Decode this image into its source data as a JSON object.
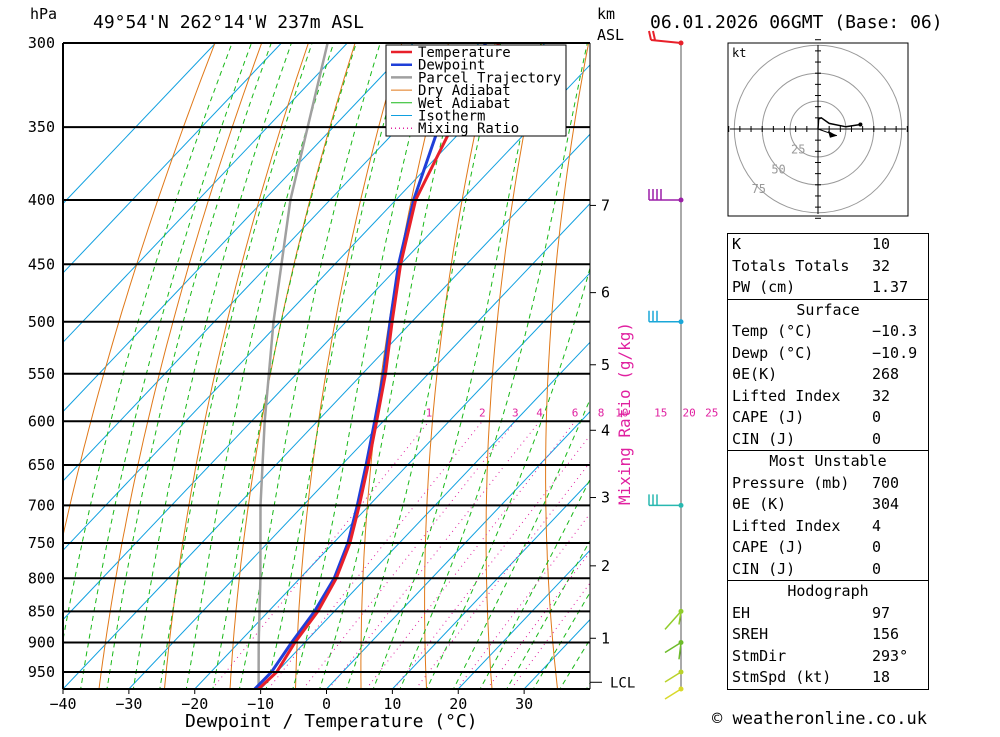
{
  "header": {
    "location": "49°54'N 262°14'W 237m ASL",
    "datetime": "06.01.2026 06GMT (Base: 06)",
    "hpa_label": "hPa",
    "km_label": "km",
    "asl_label": "ASL"
  },
  "chart_data": {
    "type": "skew-t",
    "title": "49°54'N 262°14'W 237m ASL",
    "xlabel": "Dewpoint / Temperature (°C)",
    "ylabel": "hPa",
    "right_ylabel": "Mixing Ratio (g/kg)",
    "xlim": [
      -40,
      40
    ],
    "pressure_range": [
      300,
      980
    ],
    "x_ticks": [
      -40,
      -30,
      -20,
      -10,
      0,
      10,
      20,
      30
    ],
    "pressure_levels": [
      300,
      350,
      400,
      450,
      500,
      550,
      600,
      650,
      700,
      750,
      800,
      850,
      900,
      950
    ],
    "km_ticks": [
      {
        "label": "7",
        "p": 404
      },
      {
        "label": "6",
        "p": 474
      },
      {
        "label": "5",
        "p": 541
      },
      {
        "label": "4",
        "p": 610
      },
      {
        "label": "3",
        "p": 690
      },
      {
        "label": "2",
        "p": 782
      },
      {
        "label": "1",
        "p": 893
      }
    ],
    "lcl": {
      "label": "LCL",
      "p": 968
    },
    "mixing_ratio_labels": [
      "1",
      "2",
      "3",
      "4",
      "6",
      "8",
      "10",
      "15",
      "20",
      "25"
    ],
    "mixing_ratio_values": [
      1,
      2,
      3,
      4,
      6,
      8,
      10,
      15,
      20,
      25
    ],
    "legend": [
      "Temperature",
      "Dewpoint",
      "Parcel Trajectory",
      "Dry Adiabat",
      "Wet Adiabat",
      "Isotherm",
      "Mixing Ratio"
    ],
    "series": [
      {
        "name": "Temperature",
        "points": [
          {
            "p": 980,
            "t": -10.3
          },
          {
            "p": 950,
            "t": -10.0
          },
          {
            "p": 900,
            "t": -11.5
          },
          {
            "p": 850,
            "t": -12.5
          },
          {
            "p": 800,
            "t": -14.5
          },
          {
            "p": 750,
            "t": -17.5
          },
          {
            "p": 700,
            "t": -21.5
          },
          {
            "p": 650,
            "t": -26.0
          },
          {
            "p": 600,
            "t": -31.0
          },
          {
            "p": 550,
            "t": -36.5
          },
          {
            "p": 500,
            "t": -43.0
          },
          {
            "p": 450,
            "t": -50.0
          },
          {
            "p": 400,
            "t": -57.0
          },
          {
            "p": 350,
            "t": -62.0
          },
          {
            "p": 300,
            "t": -67.0
          }
        ]
      },
      {
        "name": "Dewpoint",
        "points": [
          {
            "p": 980,
            "t": -10.9
          },
          {
            "p": 950,
            "t": -10.8
          },
          {
            "p": 900,
            "t": -12.0
          },
          {
            "p": 850,
            "t": -13.0
          },
          {
            "p": 800,
            "t": -14.8
          },
          {
            "p": 750,
            "t": -17.8
          },
          {
            "p": 700,
            "t": -21.8
          },
          {
            "p": 650,
            "t": -26.3
          },
          {
            "p": 600,
            "t": -31.3
          },
          {
            "p": 550,
            "t": -36.8
          },
          {
            "p": 500,
            "t": -43.3
          },
          {
            "p": 450,
            "t": -50.3
          },
          {
            "p": 400,
            "t": -57.3
          },
          {
            "p": 350,
            "t": -64.0
          },
          {
            "p": 300,
            "t": -69.0
          }
        ]
      },
      {
        "name": "Parcel Trajectory",
        "points": [
          {
            "p": 980,
            "t": -10.3
          },
          {
            "p": 900,
            "t": -17.0
          },
          {
            "p": 800,
            "t": -26.0
          },
          {
            "p": 700,
            "t": -36.5
          },
          {
            "p": 600,
            "t": -48.0
          },
          {
            "p": 500,
            "t": -61.0
          },
          {
            "p": 400,
            "t": -76.0
          },
          {
            "p": 300,
            "t": -93.0
          }
        ]
      }
    ],
    "wind_barbs": [
      {
        "p": 300,
        "color": "#e8202a"
      },
      {
        "p": 400,
        "color": "#9b1fa8"
      },
      {
        "p": 500,
        "color": "#1aa7d8"
      },
      {
        "p": 700,
        "color": "#28b8b0"
      },
      {
        "p": 850,
        "color": "#8fcc2a"
      },
      {
        "p": 900,
        "color": "#6dbb2a"
      },
      {
        "p": 950,
        "color": "#b9d22a"
      },
      {
        "p": 980,
        "color": "#d9d92a"
      }
    ],
    "colors": {
      "temperature": "#e8202a",
      "dewpoint": "#1f3fd8",
      "parcel": "#a0a0a0",
      "dry_adiabat": "#e07818",
      "wet_adiabat": "#18b818",
      "isotherm": "#10a0e0",
      "mixing_ratio": "#e020a0"
    }
  },
  "hodograph": {
    "unit_label": "kt",
    "ring_labels": [
      "25",
      "50",
      "75"
    ],
    "ring_values": [
      25,
      50,
      75
    ],
    "trace": [
      {
        "u": 0,
        "v": 0
      },
      {
        "u": 0.5,
        "v": 9
      },
      {
        "u": 3,
        "v": 10
      },
      {
        "u": 10,
        "v": 5
      },
      {
        "u": 25,
        "v": 2
      },
      {
        "u": 38,
        "v": 4
      }
    ],
    "storm_motion": {
      "u": 17,
      "v": -6
    }
  },
  "indices": {
    "top": [
      {
        "key": "K",
        "value": "10"
      },
      {
        "key": "Totals Totals",
        "value": "32"
      },
      {
        "key": "PW (cm)",
        "value": "1.37"
      }
    ],
    "surface": {
      "title": "Surface",
      "rows": [
        {
          "key": "Temp (°C)",
          "value": "−10.3"
        },
        {
          "key": "Dewp (°C)",
          "value": "−10.9"
        },
        {
          "key": "θE(K)",
          "value": "268"
        },
        {
          "key": "Lifted Index",
          "value": "32"
        },
        {
          "key": "CAPE (J)",
          "value": "0"
        },
        {
          "key": "CIN (J)",
          "value": "0"
        }
      ]
    },
    "most_unstable": {
      "title": "Most Unstable",
      "rows": [
        {
          "key": "Pressure (mb)",
          "value": "700"
        },
        {
          "key": "θE (K)",
          "value": "304"
        },
        {
          "key": "Lifted Index",
          "value": "4"
        },
        {
          "key": "CAPE (J)",
          "value": "0"
        },
        {
          "key": "CIN (J)",
          "value": "0"
        }
      ]
    },
    "hodograph": {
      "title": "Hodograph",
      "rows": [
        {
          "key": "EH",
          "value": "97"
        },
        {
          "key": "SREH",
          "value": "156"
        },
        {
          "key": "StmDir",
          "value": "293°"
        },
        {
          "key": "StmSpd (kt)",
          "value": "18"
        }
      ]
    }
  },
  "footer": {
    "copyright": "© weatheronline.co.uk"
  }
}
